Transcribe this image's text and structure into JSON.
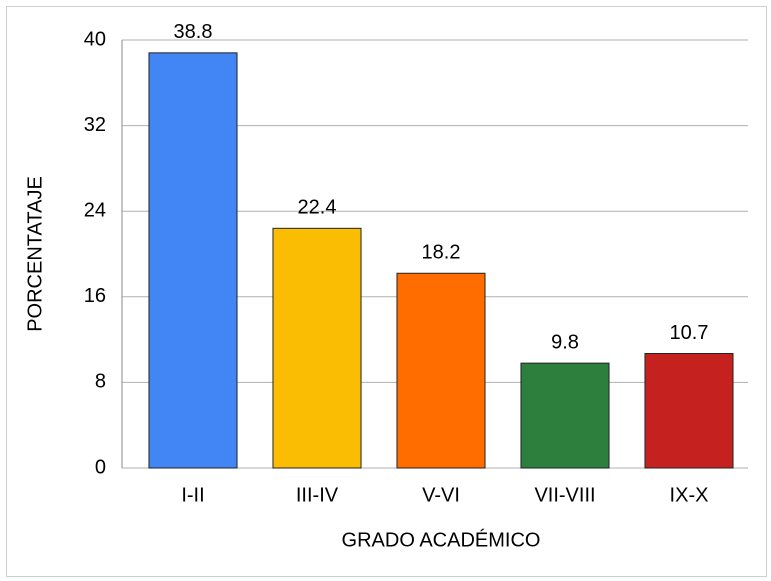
{
  "chart_data": {
    "type": "bar",
    "categories": [
      "I-II",
      "III-IV",
      "V-VI",
      "VII-VIII",
      "IX-X"
    ],
    "values": [
      38.8,
      22.4,
      18.2,
      9.8,
      10.7
    ],
    "colors": [
      "#4285f4",
      "#fbbc04",
      "#ff6d00",
      "#2d7f3e",
      "#c5221f"
    ],
    "xlabel": "GRADO ACADÉMICO",
    "ylabel": "PORCENTATAJE",
    "ylim": [
      0,
      40
    ],
    "yticks": [
      0,
      8,
      16,
      24,
      32,
      40
    ],
    "grid": true,
    "data_labels": true
  }
}
